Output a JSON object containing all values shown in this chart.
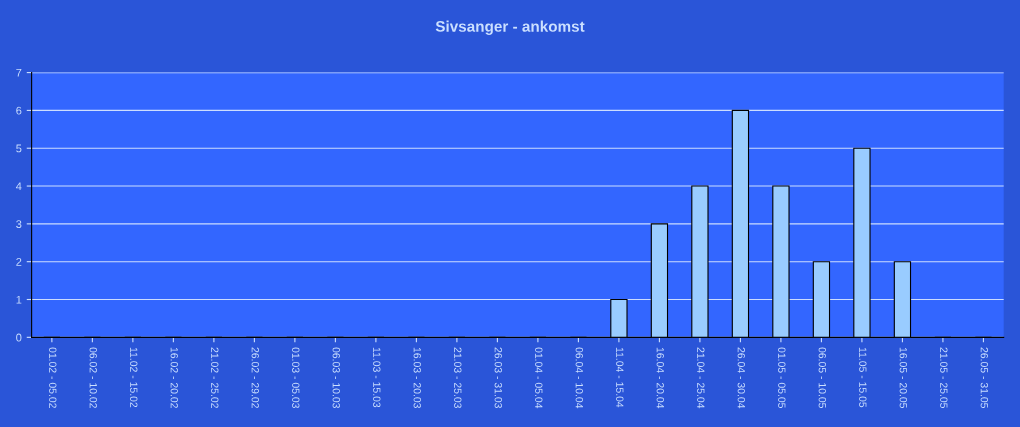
{
  "chart_data": {
    "type": "bar",
    "title": "Sivsanger - ankomst",
    "categories": [
      "01.02 - 05.02",
      "06.02 - 10.02",
      "11.02 - 15.02",
      "16.02 - 20.02",
      "21.02 - 25.02",
      "26.02 - 29.02",
      "01.03 - 05.03",
      "06.03 - 10.03",
      "11.03 - 15.03",
      "16.03 - 20.03",
      "21.03 - 25.03",
      "26.03 - 31.03",
      "01.04 - 05.04",
      "06.04 - 10.04",
      "11.04 - 15.04",
      "16.04 - 20.04",
      "21.04 - 25.04",
      "26.04 - 30.04",
      "01.05 - 05.05",
      "06.05 - 10.05",
      "11.05 - 15.05",
      "16.05 - 20.05",
      "21.05 - 25.05",
      "26.05 - 31.05"
    ],
    "values": [
      0,
      0,
      0,
      0,
      0,
      0,
      0,
      0,
      0,
      0,
      0,
      0,
      0,
      0,
      1,
      3,
      4,
      6,
      4,
      2,
      5,
      2,
      0,
      0
    ],
    "color": "#99ccff",
    "ylim": [
      0,
      7
    ],
    "yticks": [
      0,
      1,
      2,
      3,
      4,
      5,
      6,
      7
    ],
    "grid": "y"
  }
}
